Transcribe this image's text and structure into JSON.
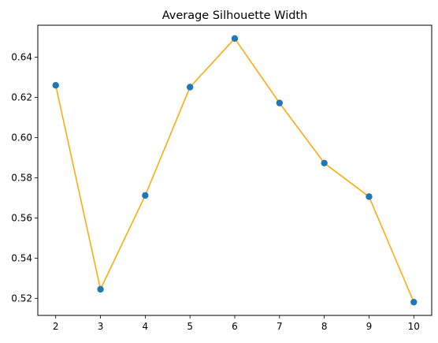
{
  "chart_data": {
    "type": "line",
    "title": "Average Silhouette Width",
    "xlabel": "",
    "ylabel": "",
    "x": [
      2,
      3,
      4,
      5,
      6,
      7,
      8,
      9,
      10
    ],
    "series": [
      {
        "values": [
          0.626,
          0.5245,
          0.5712,
          0.6251,
          0.6493,
          0.6172,
          0.5873,
          0.5706,
          0.5181
        ],
        "line_color": "#ffa500",
        "marker_color": "#1f77b4"
      }
    ],
    "xlim": [
      1.6,
      10.4
    ],
    "ylim": [
      0.5115,
      0.6559
    ],
    "xticks": [
      2,
      3,
      4,
      5,
      6,
      7,
      8,
      9,
      10
    ],
    "xtick_labels": [
      "2",
      "3",
      "4",
      "5",
      "6",
      "7",
      "8",
      "9",
      "10"
    ],
    "yticks": [
      0.52,
      0.54,
      0.56,
      0.58,
      0.6,
      0.62,
      0.64
    ],
    "ytick_labels": [
      "0.52",
      "0.54",
      "0.56",
      "0.58",
      "0.60",
      "0.62",
      "0.64"
    ],
    "grid": false,
    "legend": "none"
  }
}
